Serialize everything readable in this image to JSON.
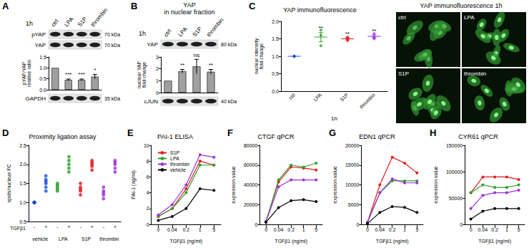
{
  "blots": [
    {
      "panel": "A",
      "time": "1h",
      "lanes": [
        "ctrl",
        "LPA",
        "S1P",
        "thrombin"
      ],
      "bands": [
        {
          "name": "pYAP",
          "size": "70 kDa"
        },
        {
          "name": "YAP",
          "size": "70 kDa"
        },
        {
          "name": "GAPDH",
          "size": "35 kDa"
        }
      ]
    },
    {
      "panel": "B",
      "title": [
        "YAP",
        "in nuclear fraction"
      ],
      "time": "1h",
      "lanes": [
        "ctrl",
        "LPA",
        "S1P",
        "thrombin"
      ],
      "bands": [
        {
          "name": "YAP",
          "size": "80 kDa"
        },
        {
          "name": "cJUN",
          "size": "40 kDa"
        }
      ]
    }
  ],
  "images": {
    "title": "YAP immunofluorescence 1h",
    "labels": [
      "ctrl",
      "LPA",
      "S1P",
      "thrombin"
    ]
  },
  "chart_data": [
    {
      "type": "bar",
      "ylabel": "pYAP/YAP\nrelative ratio",
      "categories": [
        null,
        null,
        null,
        null
      ],
      "values": [
        1,
        0.45,
        0.45,
        0.6
      ],
      "errors": [
        0,
        0.04,
        0.04,
        0.1
      ],
      "annotations": [
        null,
        "***",
        "***",
        "*"
      ],
      "color": "#a0a0a0",
      "ylim": [
        0,
        1.5
      ],
      "yticks": [
        {
          "value": 0,
          "label": "0.0"
        },
        0.5,
        {
          "value": 1,
          "label": "1.0"
        },
        1.5
      ],
      "tick_labels": "y"
    },
    {
      "type": "bar",
      "ylabel": "nuclear YAP\nfold change",
      "categories": [
        null,
        null,
        null,
        null
      ],
      "values": [
        1,
        1.8,
        2.2,
        1.75
      ],
      "errors": [
        0,
        0.15,
        0.6,
        0.2
      ],
      "annotations": [
        null,
        "**",
        "ns",
        "**"
      ],
      "color": "#a0a0a0",
      "ylim": [
        0,
        3
      ],
      "yticks": [
        0,
        1,
        2,
        3
      ],
      "tick_labels": "y"
    },
    {
      "panel": "C",
      "type": "scatter",
      "title": "YAP immunofluorescence",
      "ylabel": "nuclear intensity\nfold change",
      "xlabel": "1h",
      "categories": [
        "ctrl",
        "LPA",
        "S1P",
        "thrombin"
      ],
      "colors": [
        "#1f4fd8",
        "#2ca02c",
        "#e41a1c",
        "#9b30d9"
      ],
      "marker": "diamond",
      "points": [
        [
          1,
          1,
          1,
          1
        ],
        [
          1.3,
          1.6,
          1.75
        ],
        [
          1.45,
          1.5,
          1.55
        ],
        [
          1.5,
          1.55,
          1.65
        ]
      ],
      "means": [
        1,
        1.55,
        1.5,
        1.57
      ],
      "errors": [
        0,
        0.13,
        0.03,
        0.04
      ],
      "annotations": [
        null,
        "**",
        "**",
        "**"
      ],
      "ylim": [
        0,
        2
      ],
      "yticks": [
        {
          "value": 0,
          "label": "0.0"
        },
        0.5,
        {
          "value": 1,
          "label": "1.0"
        },
        1.5,
        {
          "value": 2,
          "label": "2.0"
        }
      ]
    },
    {
      "panel": "D",
      "type": "scatter",
      "title": "Proximity ligation assay",
      "ylabel": "spots/nucleus FC",
      "xlabel": "TGFβ1",
      "categories": [
        "-",
        "+",
        "-",
        "+",
        "-",
        "+",
        "-",
        "+"
      ],
      "groups": [
        "vehicle",
        "LPA",
        "S1P",
        "thrombin"
      ],
      "colors": [
        "#1f4fd8",
        "#1f4fd8",
        "#2ca02c",
        "#2ca02c",
        "#e41a1c",
        "#e41a1c",
        "#9b30d9",
        "#9b30d9"
      ],
      "marker": "circle",
      "points": [
        [
          1,
          1,
          1,
          1,
          1
        ],
        [
          1.3,
          1.5,
          1.6,
          1.7,
          1.4,
          1.55
        ],
        [
          1.3,
          1.35,
          1.4,
          1.45,
          1.5
        ],
        [
          1.8,
          1.9,
          2.0,
          2.1,
          2.2
        ],
        [
          1.2,
          1.3,
          1.4,
          1.5,
          1.35
        ],
        [
          1.85,
          1.95,
          2.0,
          2.1,
          2.05
        ],
        [
          1.1,
          1.2,
          1.3,
          1.4,
          1.25
        ],
        [
          1.8,
          1.9,
          2.0,
          2.1,
          2.05
        ]
      ],
      "ylim": [
        0.5,
        2.5
      ],
      "yticks": [
        0.5,
        {
          "value": 1,
          "label": "1.0"
        },
        1.5,
        {
          "value": 2,
          "label": "2.0"
        },
        2.5
      ]
    },
    {
      "panel": "E",
      "type": "line",
      "title": "PAI-1 ELISA",
      "xlabel": "TGFβ1 (ng/ml)",
      "ylabel": "PAI-1 (ng/ml)",
      "categories": [
        "0",
        "0.04",
        "0.2",
        "1",
        "5"
      ],
      "legend": "upper left",
      "marker": "circle",
      "series": [
        {
          "name": "S1P",
          "color": "#e41a1c",
          "values": [
            1,
            2,
            4.5,
            8,
            7.5
          ]
        },
        {
          "name": "LPA",
          "color": "#2ca02c",
          "values": [
            1,
            2,
            4,
            7.5,
            7.5
          ]
        },
        {
          "name": "thrombin",
          "color": "#9b30d9",
          "values": [
            1.2,
            2.5,
            5,
            8.8,
            8.5
          ]
        },
        {
          "name": "vehicle",
          "color": "#000000",
          "values": [
            0.5,
            1,
            2,
            4.5,
            4.3
          ]
        }
      ],
      "ylim": [
        0,
        10
      ],
      "yticks": [
        0,
        2,
        4,
        6,
        8,
        10
      ]
    },
    {
      "panel": "F",
      "type": "line",
      "title": "CTGF qPCR",
      "xlabel": "TGFβ1 (ng/ml)",
      "ylabel": "expression value",
      "categories": [
        "0",
        "0.04",
        "0.2",
        "1",
        "5"
      ],
      "marker": "circle",
      "series": [
        {
          "color": "#e41a1c",
          "values": [
            3000,
            43000,
            58000,
            57000,
            55000
          ]
        },
        {
          "color": "#2ca02c",
          "values": [
            3000,
            45000,
            60000,
            58000,
            62000
          ]
        },
        {
          "color": "#9b30d9",
          "values": [
            3000,
            38000,
            45000,
            45000,
            45000
          ]
        },
        {
          "color": "#000000",
          "values": [
            2000,
            17000,
            24000,
            25000,
            23000
          ]
        }
      ],
      "ylim": [
        0,
        80000
      ],
      "yticks": [
        0,
        20000,
        40000,
        60000,
        80000
      ]
    },
    {
      "panel": "G",
      "type": "line",
      "title": "EDN1 qPCR",
      "xlabel": "TGFβ1 (ng/ml)",
      "ylabel": "expression value",
      "categories": [
        "0",
        "0.04",
        "0.2",
        "1",
        "5"
      ],
      "marker": "circle",
      "series": [
        {
          "color": "#e41a1c",
          "values": [
            500,
            10000,
            17000,
            15500,
            13000
          ]
        },
        {
          "color": "#2ca02c",
          "values": [
            500,
            8000,
            11000,
            11000,
            11000
          ]
        },
        {
          "color": "#9b30d9",
          "values": [
            500,
            8000,
            11500,
            10500,
            10500
          ]
        },
        {
          "color": "#000000",
          "values": [
            200,
            3000,
            4500,
            4300,
            3000
          ]
        }
      ],
      "ylim": [
        0,
        20000
      ],
      "yticks": [
        0,
        5000,
        10000,
        15000,
        20000
      ]
    },
    {
      "panel": "H",
      "type": "line",
      "title": "CYR61 qPCR",
      "xlabel": "TGFβ1 (ng/ml)",
      "ylabel": "expression value",
      "categories": [
        "0",
        "0.04",
        "0.2",
        "1",
        "5"
      ],
      "marker": "circle",
      "series": [
        {
          "color": "#e41a1c",
          "values": [
            60000,
            90000,
            90000,
            90000,
            85000
          ]
        },
        {
          "color": "#2ca02c",
          "values": [
            60000,
            75000,
            70000,
            70000,
            75000
          ]
        },
        {
          "color": "#9b30d9",
          "values": [
            30000,
            55000,
            60000,
            60000,
            65000
          ]
        },
        {
          "color": "#000000",
          "values": [
            10000,
            25000,
            30000,
            30000,
            30000
          ]
        }
      ],
      "ylim": [
        0,
        150000
      ],
      "yticks": [
        0,
        50000,
        100000,
        150000
      ]
    }
  ]
}
